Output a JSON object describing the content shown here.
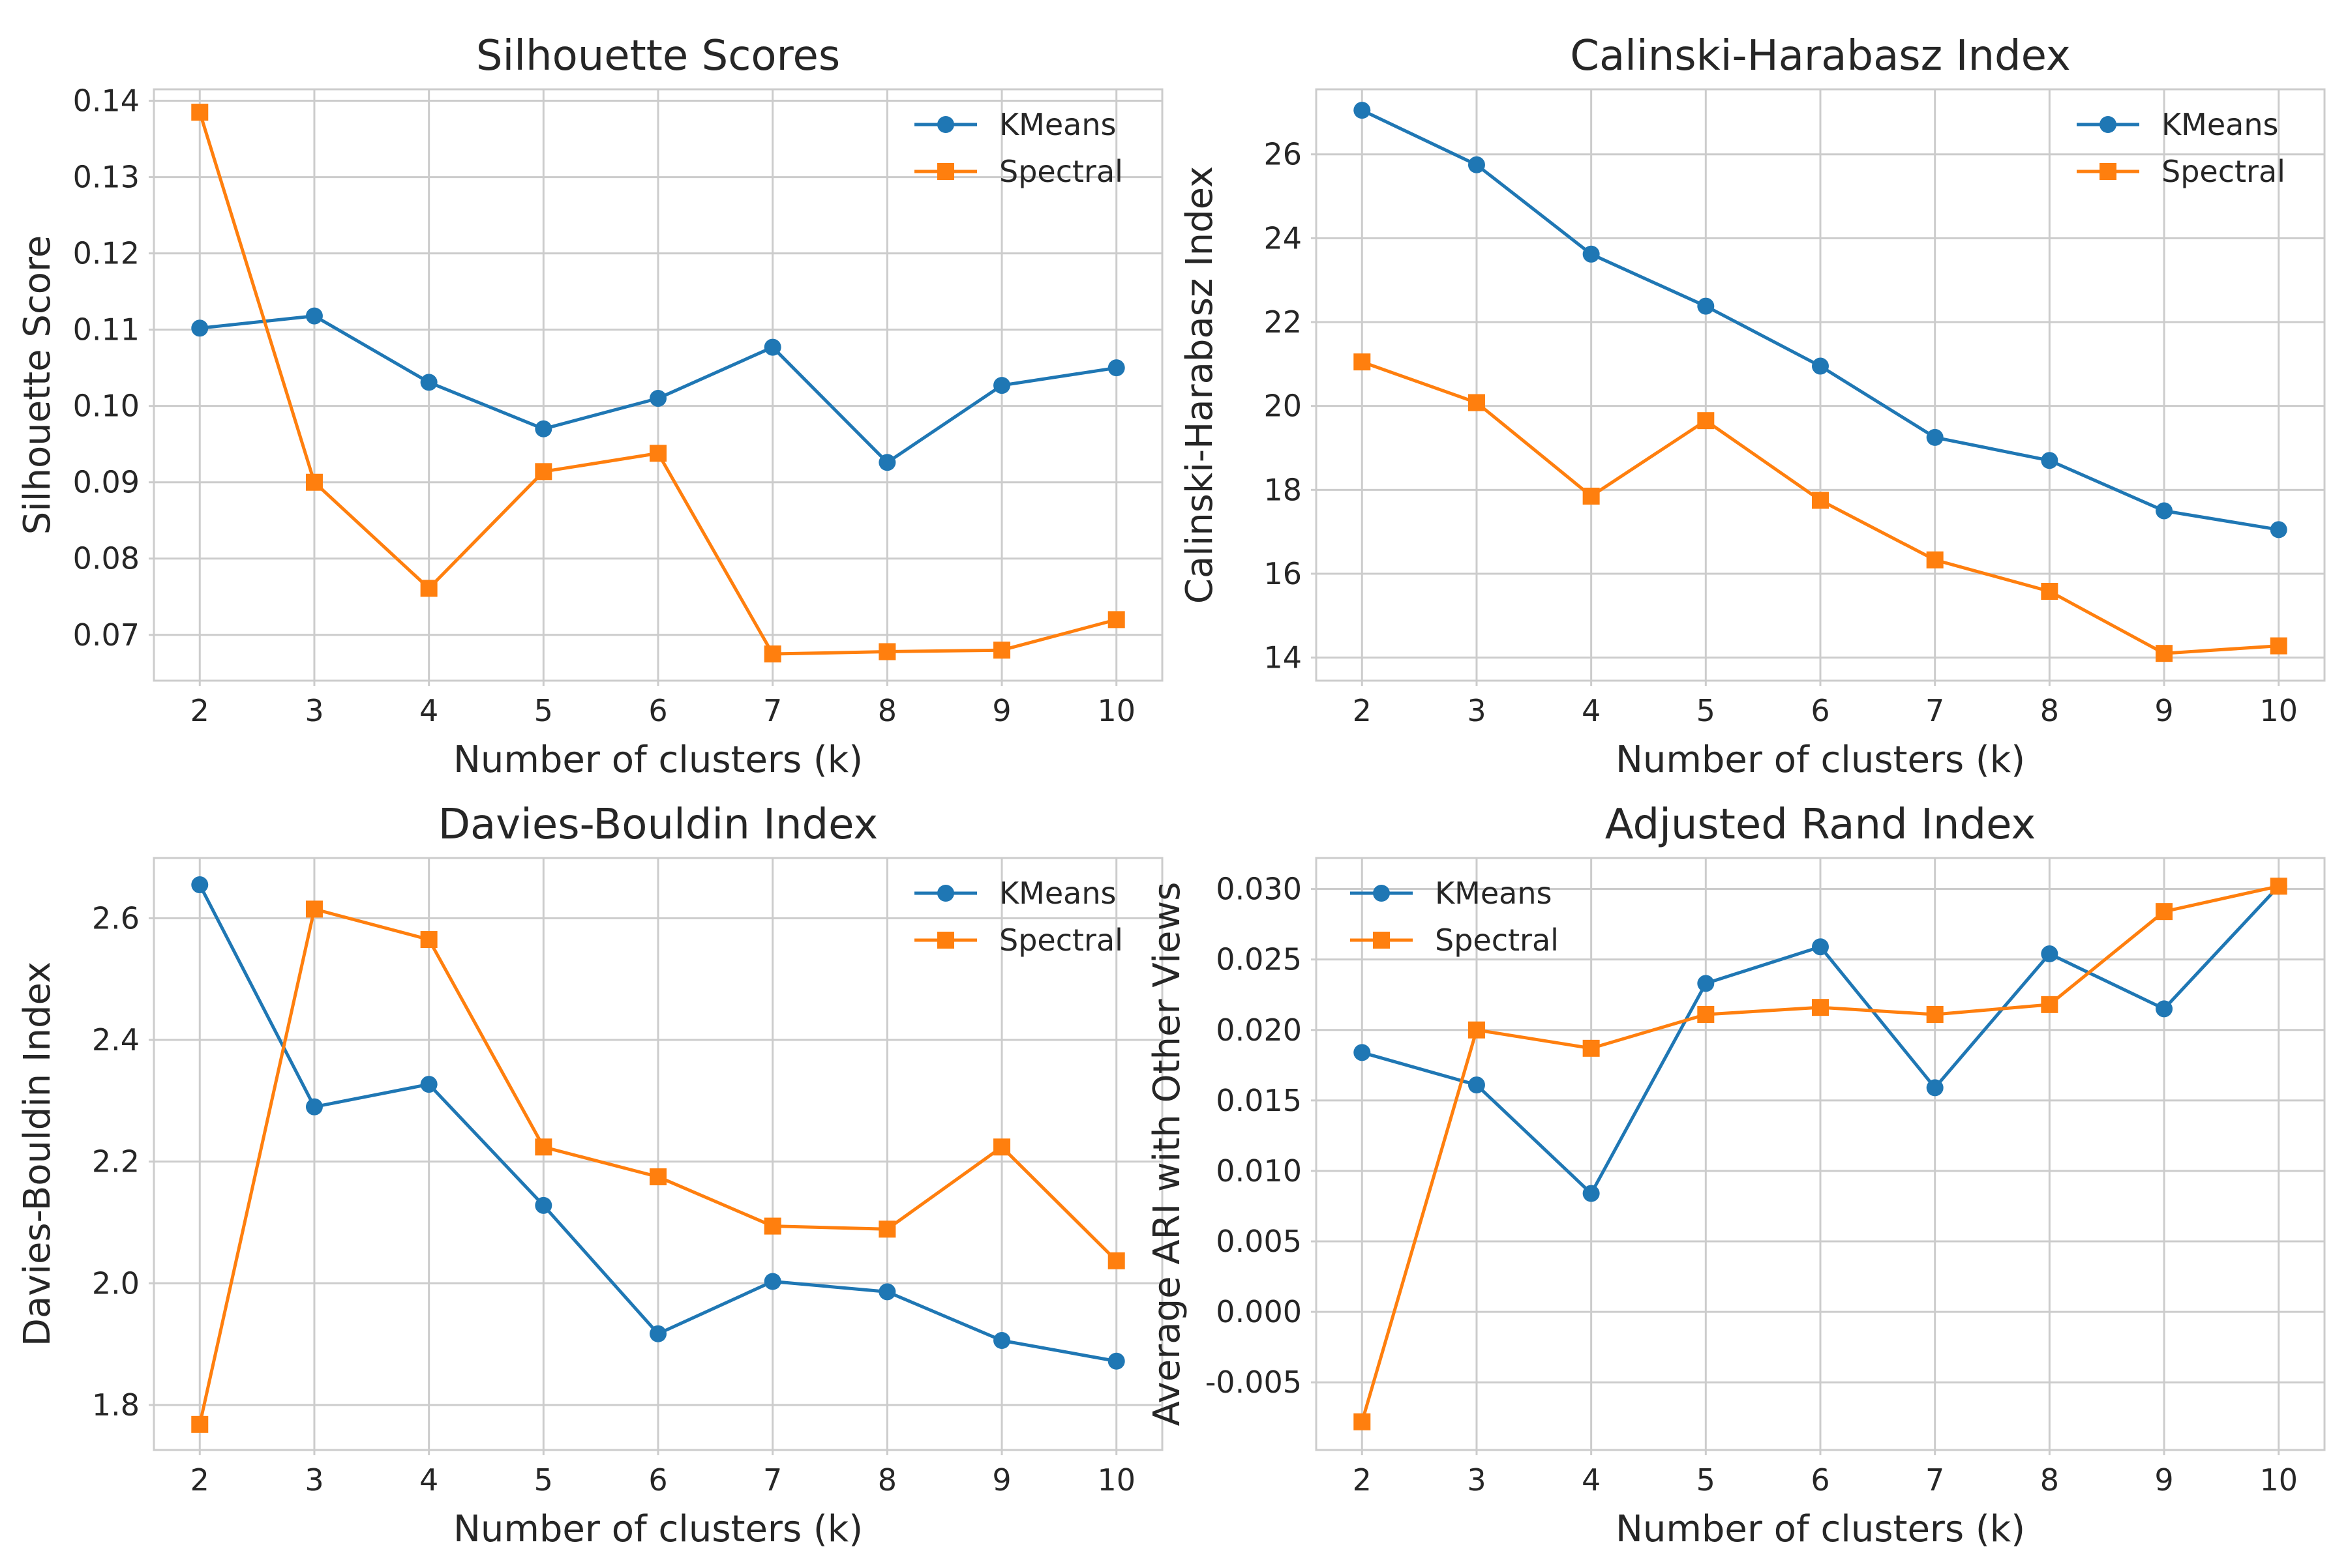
{
  "chart_data": [
    {
      "type": "line",
      "title": "Silhouette Scores",
      "xlabel": "Number of clusters (k)",
      "ylabel": "Silhouette Score",
      "x": [
        2,
        3,
        4,
        5,
        6,
        7,
        8,
        9,
        10
      ],
      "xlim": [
        1.6,
        10.4
      ],
      "ylim": [
        0.064,
        0.1415
      ],
      "yticks": [
        0.07,
        0.08,
        0.09,
        0.1,
        0.11,
        0.12,
        0.13,
        0.14
      ],
      "ytick_labels": [
        "0.07",
        "0.08",
        "0.09",
        "0.10",
        "0.11",
        "0.12",
        "0.13",
        "0.14"
      ],
      "grid": true,
      "legend": "top-right",
      "series": [
        {
          "name": "KMeans",
          "color": "#1f77b4",
          "marker": "circle",
          "values": [
            0.1102,
            0.1118,
            0.1031,
            0.097,
            0.101,
            0.1077,
            0.0926,
            0.1027,
            0.105
          ]
        },
        {
          "name": "Spectral",
          "color": "#ff7f0e",
          "marker": "square",
          "values": [
            0.1385,
            0.09,
            0.0761,
            0.0914,
            0.0938,
            0.0675,
            0.0678,
            0.068,
            0.072
          ]
        }
      ]
    },
    {
      "type": "line",
      "title": "Calinski-Harabasz Index",
      "xlabel": "Number of clusters (k)",
      "ylabel": "Calinski-Harabasz Index",
      "x": [
        2,
        3,
        4,
        5,
        6,
        7,
        8,
        9,
        10
      ],
      "xlim": [
        1.6,
        10.4
      ],
      "ylim": [
        13.45,
        27.55
      ],
      "yticks": [
        14,
        16,
        18,
        20,
        22,
        24,
        26
      ],
      "ytick_labels": [
        "14",
        "16",
        "18",
        "20",
        "22",
        "24",
        "26"
      ],
      "grid": true,
      "legend": "top-right",
      "series": [
        {
          "name": "KMeans",
          "color": "#1f77b4",
          "marker": "circle",
          "values": [
            27.05,
            25.75,
            23.62,
            22.38,
            20.95,
            19.25,
            18.7,
            17.5,
            17.05
          ]
        },
        {
          "name": "Spectral",
          "color": "#ff7f0e",
          "marker": "square",
          "values": [
            21.05,
            20.08,
            17.85,
            19.65,
            17.75,
            16.33,
            15.58,
            14.1,
            14.28
          ]
        }
      ]
    },
    {
      "type": "line",
      "title": "Davies-Bouldin Index",
      "xlabel": "Number of clusters (k)",
      "ylabel": "Davies-Bouldin Index",
      "x": [
        2,
        3,
        4,
        5,
        6,
        7,
        8,
        9,
        10
      ],
      "xlim": [
        1.6,
        10.4
      ],
      "ylim": [
        1.726,
        2.699
      ],
      "yticks": [
        1.8,
        2.0,
        2.2,
        2.4,
        2.6
      ],
      "ytick_labels": [
        "1.8",
        "2.0",
        "2.2",
        "2.4",
        "2.6"
      ],
      "grid": true,
      "legend": "top-right",
      "series": [
        {
          "name": "KMeans",
          "color": "#1f77b4",
          "marker": "circle",
          "values": [
            2.655,
            2.29,
            2.327,
            2.128,
            1.917,
            2.003,
            1.986,
            1.906,
            1.872
          ]
        },
        {
          "name": "Spectral",
          "color": "#ff7f0e",
          "marker": "square",
          "values": [
            1.768,
            2.615,
            2.565,
            2.224,
            2.175,
            2.094,
            2.089,
            2.224,
            2.037
          ]
        }
      ]
    },
    {
      "type": "line",
      "title": "Adjusted Rand Index",
      "xlabel": "Number of clusters (k)",
      "ylabel": "Average ARI with Other Views",
      "x": [
        2,
        3,
        4,
        5,
        6,
        7,
        8,
        9,
        10
      ],
      "xlim": [
        1.6,
        10.4
      ],
      "ylim": [
        -0.0098,
        0.0322
      ],
      "yticks": [
        -0.005,
        0.0,
        0.005,
        0.01,
        0.015,
        0.02,
        0.025,
        0.03
      ],
      "ytick_labels": [
        "-0.005",
        "0.000",
        "0.005",
        "0.010",
        "0.015",
        "0.020",
        "0.025",
        "0.030"
      ],
      "grid": true,
      "legend": "top-left",
      "series": [
        {
          "name": "KMeans",
          "color": "#1f77b4",
          "marker": "circle",
          "values": [
            0.0184,
            0.0161,
            0.0084,
            0.0233,
            0.0259,
            0.0159,
            0.0254,
            0.0215,
            0.0302
          ]
        },
        {
          "name": "Spectral",
          "color": "#ff7f0e",
          "marker": "square",
          "values": [
            -0.0078,
            0.02,
            0.0187,
            0.0211,
            0.0216,
            0.0211,
            0.0218,
            0.0284,
            0.0302
          ]
        }
      ]
    }
  ]
}
